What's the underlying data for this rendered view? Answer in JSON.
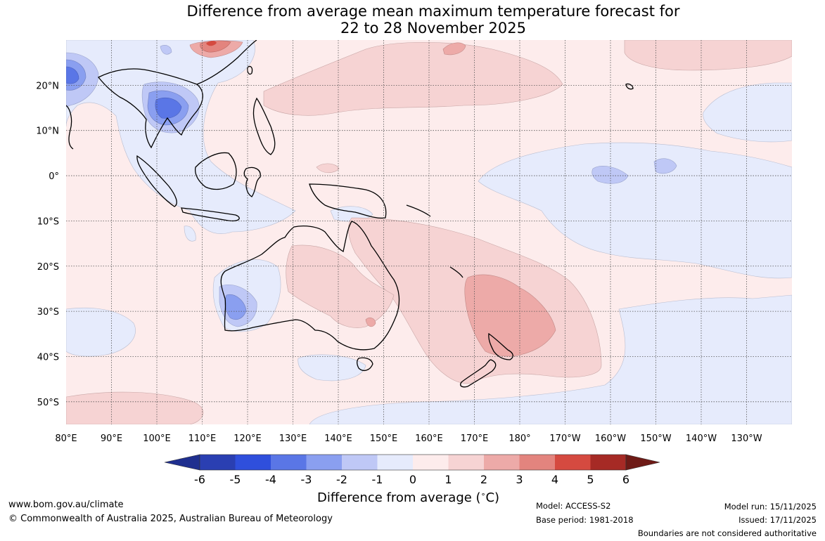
{
  "title": {
    "line1": "Difference from average mean maximum temperature forecast for",
    "line2": "22 to 28 November 2025"
  },
  "map": {
    "lat_labels": [
      "20°N",
      "10°N",
      "0°",
      "10°S",
      "20°S",
      "30°S",
      "40°S",
      "50°S"
    ],
    "lon_labels": [
      "80°E",
      "90°E",
      "100°E",
      "110°E",
      "120°E",
      "130°E",
      "140°E",
      "150°E",
      "160°E",
      "170°E",
      "180°",
      "170°W",
      "160°W",
      "150°W",
      "140°W",
      "130°W"
    ],
    "lon_range_deg_east": [
      80,
      240
    ],
    "lat_range": [
      -55,
      30
    ]
  },
  "legend": {
    "ticks": [
      "-6",
      "-5",
      "-4",
      "-3",
      "-2",
      "-1",
      "0",
      "1",
      "2",
      "3",
      "4",
      "5",
      "6"
    ],
    "colors": [
      "#1f2f8f",
      "#2a3fb2",
      "#2f4fdc",
      "#5a76e6",
      "#8a9ff0",
      "#bfc8f6",
      "#e6ebfc",
      "#fdecec",
      "#f6d3d3",
      "#edaaa8",
      "#e3847e",
      "#d54a40",
      "#a62a25",
      "#6e1a16"
    ],
    "label": "Difference from average (°C)",
    "label_text": "Difference from average (",
    "label_unit_sup": "∘",
    "label_unit_rest": "C)"
  },
  "footer": {
    "website": "www.bom.gov.au/climate",
    "copyright": "© Commonwealth of Australia 2025, Australian Bureau of Meteorology",
    "model": "Model: ACCESS-S2",
    "base_period": "Base period: 1981-2018",
    "model_run": "Model run: 15/11/2025",
    "issued": "Issued: 17/11/2025",
    "disclaimer": "Boundaries are not considered authoritative"
  }
}
